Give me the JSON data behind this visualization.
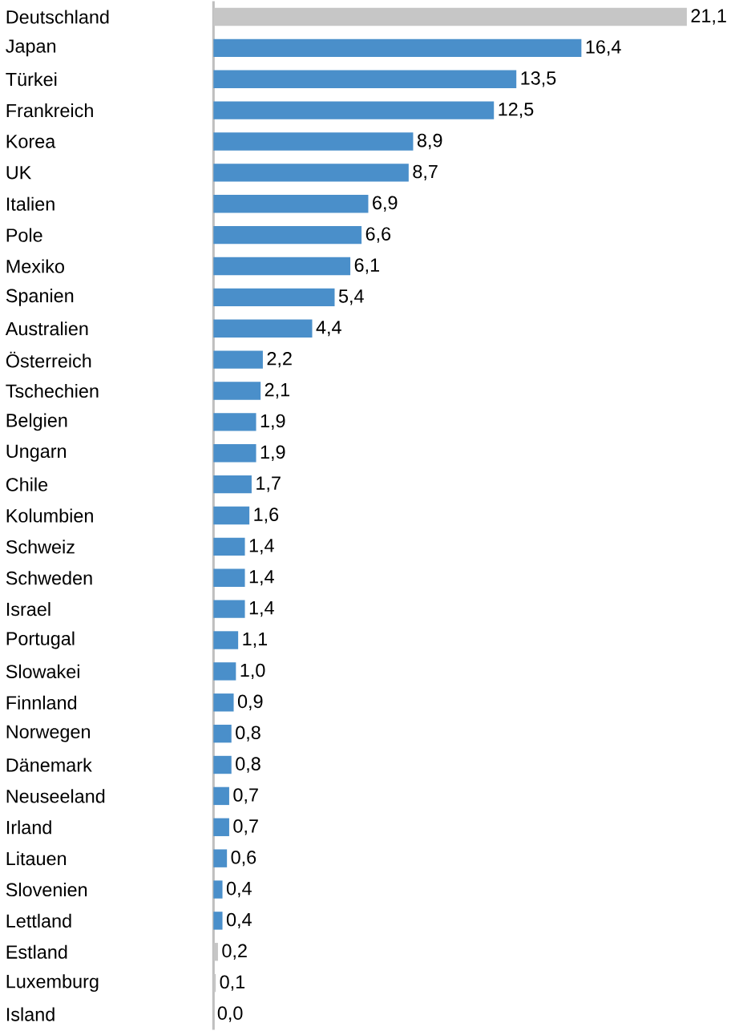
{
  "chart_data": {
    "type": "bar",
    "orientation": "horizontal",
    "categories": [
      "Deutschland",
      "Japan",
      "Türkei",
      "Frankreich",
      "Korea",
      "UK",
      "Italien",
      "Pole",
      "Mexiko",
      "Spanien",
      "Australien",
      "Österreich",
      "Tschechien",
      "Belgien",
      "Ungarn",
      "Chile",
      "Kolumbien",
      "Schweiz",
      "Schweden",
      "Israel",
      "Portugal",
      "Slowakei",
      "Finnland",
      "Norwegen",
      "Dänemark",
      "Neuseeland",
      "Irland",
      "Litauen",
      "Slovenien",
      "Lettland",
      "Estland",
      "Luxemburg",
      "Island"
    ],
    "values": [
      21.1,
      16.4,
      13.5,
      12.5,
      8.9,
      8.7,
      6.9,
      6.6,
      6.1,
      5.4,
      4.4,
      2.2,
      2.1,
      1.9,
      1.9,
      1.7,
      1.6,
      1.4,
      1.4,
      1.4,
      1.1,
      1.0,
      0.9,
      0.8,
      0.8,
      0.7,
      0.7,
      0.6,
      0.4,
      0.4,
      0.2,
      0.1,
      0.0
    ],
    "value_labels": [
      "21,1",
      "16,4",
      "13,5",
      "12,5",
      "8,9",
      "8,7",
      "6,9",
      "6,6",
      "6,1",
      "5,4",
      "4,4",
      "2,2",
      "2,1",
      "1,9",
      "1,9",
      "1,7",
      "1,6",
      "1,4",
      "1,4",
      "1,4",
      "1,1",
      "1,0",
      "0,9",
      "0,8",
      "0,8",
      "0,7",
      "0,7",
      "0,6",
      "0,4",
      "0,4",
      "0,2",
      "0,1",
      "0,0"
    ],
    "colors": [
      "#c6c6c6",
      "#4a8fca",
      "#4a8fca",
      "#4a8fca",
      "#4a8fca",
      "#4a8fca",
      "#4a8fca",
      "#4a8fca",
      "#4a8fca",
      "#4a8fca",
      "#4a8fca",
      "#4a8fca",
      "#4a8fca",
      "#4a8fca",
      "#4a8fca",
      "#4a8fca",
      "#4a8fca",
      "#4a8fca",
      "#4a8fca",
      "#4a8fca",
      "#4a8fca",
      "#4a8fca",
      "#4a8fca",
      "#4a8fca",
      "#4a8fca",
      "#4a8fca",
      "#4a8fca",
      "#4a8fca",
      "#4a8fca",
      "#4a8fca",
      "#c6c6c6",
      "#c6c6c6",
      "#c6c6c6"
    ]
  }
}
